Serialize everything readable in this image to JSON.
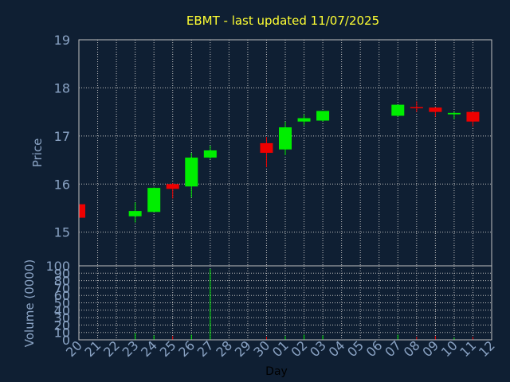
{
  "chart_data": {
    "type": "candlestick",
    "title": "EBMT - last updated 11/07/2025",
    "xlabel": "Day",
    "price_ylabel": "Price",
    "volume_ylabel": "Volume (0000)",
    "price_ylim": [
      14.3,
      19
    ],
    "price_yticks": [
      "15",
      "16",
      "17",
      "18",
      "19"
    ],
    "volume_ylim": [
      0,
      100
    ],
    "volume_yticks": [
      "0",
      "10",
      "20",
      "30",
      "40",
      "50",
      "60",
      "70",
      "80",
      "90",
      "100"
    ],
    "x_ticks": [
      "20",
      "21",
      "22",
      "23",
      "24",
      "25",
      "26",
      "27",
      "28",
      "29",
      "30",
      "01",
      "02",
      "03",
      "04",
      "05",
      "06",
      "07",
      "08",
      "09",
      "10",
      "11",
      "12"
    ],
    "grid": true,
    "colors": {
      "up": "#00ee00",
      "down": "#ee0000",
      "title": "#ffff33",
      "axis_label": "#8aa3c4",
      "grid": "#c0c0c0",
      "frame": "#c0c0c0"
    },
    "candles": [
      {
        "day": "20",
        "open": 15.58,
        "high": 15.58,
        "low": 15.3,
        "close": 15.3,
        "volume": 2
      },
      {
        "day": "23",
        "open": 15.33,
        "high": 15.62,
        "low": 15.2,
        "close": 15.44,
        "volume": 9
      },
      {
        "day": "24",
        "open": 15.42,
        "high": 15.93,
        "low": 15.42,
        "close": 15.92,
        "volume": 6
      },
      {
        "day": "25",
        "open": 16.0,
        "high": 16.02,
        "low": 15.7,
        "close": 15.9,
        "volume": 5
      },
      {
        "day": "26",
        "open": 15.95,
        "high": 16.65,
        "low": 15.72,
        "close": 16.55,
        "volume": 7
      },
      {
        "day": "27",
        "open": 16.55,
        "high": 16.8,
        "low": 16.52,
        "close": 16.7,
        "volume": 96
      },
      {
        "day": "30",
        "open": 16.85,
        "high": 16.98,
        "low": 16.35,
        "close": 16.65,
        "volume": 4
      },
      {
        "day": "01",
        "open": 16.72,
        "high": 17.3,
        "low": 16.6,
        "close": 17.18,
        "volume": 5
      },
      {
        "day": "02",
        "open": 17.3,
        "high": 17.45,
        "low": 17.22,
        "close": 17.37,
        "volume": 7
      },
      {
        "day": "03",
        "open": 17.32,
        "high": 17.52,
        "low": 17.3,
        "close": 17.52,
        "volume": 6
      },
      {
        "day": "07",
        "open": 17.42,
        "high": 17.65,
        "low": 17.4,
        "close": 17.65,
        "volume": 7
      },
      {
        "day": "08",
        "open": 17.6,
        "high": 17.72,
        "low": 17.5,
        "close": 17.58,
        "volume": 4
      },
      {
        "day": "09",
        "open": 17.59,
        "high": 17.6,
        "low": 17.4,
        "close": 17.5,
        "volume": 5
      },
      {
        "day": "10",
        "open": 17.45,
        "high": 17.5,
        "low": 17.35,
        "close": 17.48,
        "volume": 3
      },
      {
        "day": "11",
        "open": 17.5,
        "high": 17.5,
        "low": 17.2,
        "close": 17.3,
        "volume": 4
      }
    ]
  }
}
